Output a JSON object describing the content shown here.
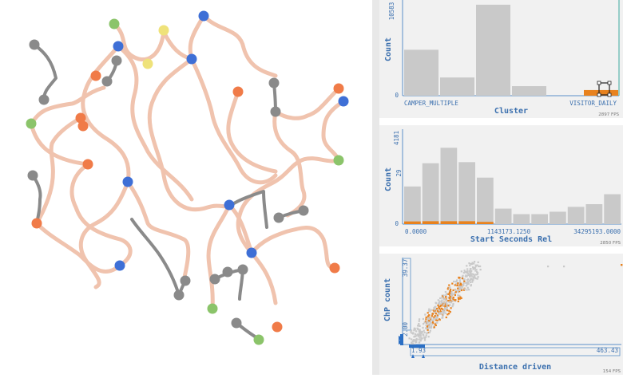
{
  "map": {
    "trail_color": "#f0c3ae",
    "visited_color": "#8a8a8a",
    "marker_colors": {
      "blue": "#3e6fd6",
      "orange": "#f07b48",
      "green": "#8bc46a",
      "yellow": "#efe27a",
      "gray": "#8a8a8a"
    }
  },
  "panels": [
    {
      "chart_data": {
        "type": "bar",
        "ylabel": "Count",
        "xlabel": "Cluster",
        "y_tick_labels": [
          "10583",
          "0"
        ],
        "x_tick_labels": [
          "CAMPER_MULTIPLE",
          "VISITOR_DAILY"
        ],
        "ylim": [
          0,
          10583
        ],
        "categories": [
          "CAMPER_MULTIPLE",
          "",
          "",
          "",
          "",
          "VISITOR_DAILY"
        ],
        "series": [
          {
            "values": [
              5300,
              2100,
              10500,
              1100,
              0,
              0
            ],
            "color": "#c9c9c9"
          },
          {
            "values": [
              0,
              0,
              0,
              0,
              0,
              650
            ],
            "color": "#e8821e"
          }
        ],
        "fps": "2897 FPS"
      }
    },
    {
      "chart_data": {
        "type": "bar",
        "ylabel": "Count",
        "xlabel": "Start Seconds Rel",
        "y_tick_labels": [
          "4181",
          "29",
          "0"
        ],
        "x_tick_labels": [
          "0.0000",
          "1143173.1250",
          "34295193.0000"
        ],
        "ylim": [
          0,
          4181
        ],
        "series": [
          {
            "values": [
              1700,
              2750,
              3450,
              2800,
              2100,
              700,
              450,
              450,
              560,
              780,
              900,
              1350
            ],
            "color": "#c9c9c9"
          },
          {
            "values": [
              120,
              130,
              130,
              130,
              100,
              0,
              0,
              0,
              0,
              0,
              0,
              0
            ],
            "color": "#e8821e"
          }
        ],
        "fps": "2850 FPS"
      }
    },
    {
      "chart_data": {
        "type": "scatter",
        "ylabel": "ChP count",
        "xlabel": "Distance driven",
        "y_tick_labels": [
          "39.37",
          "2.00"
        ],
        "x_tick_labels": [
          "1.93",
          "463.43"
        ],
        "xlim": [
          1.93,
          463.43
        ],
        "ylim": [
          2.0,
          39.37
        ],
        "series": [
          {
            "color": "#c9c9c9"
          },
          {
            "color": "#e8821e"
          }
        ],
        "fps": "154 FPS"
      }
    }
  ]
}
